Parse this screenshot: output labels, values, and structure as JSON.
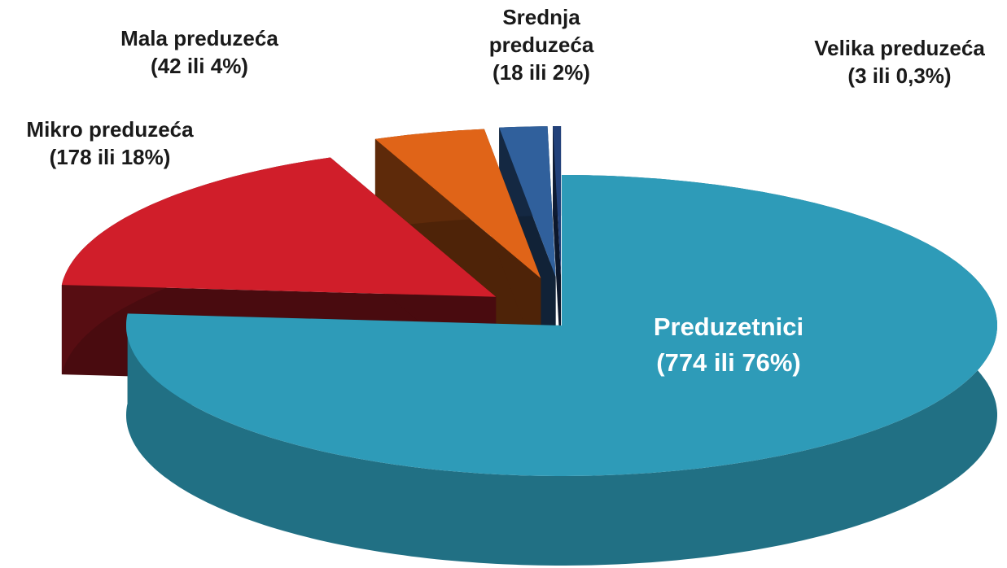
{
  "chart_data": {
    "type": "pie",
    "categories": [
      "Preduzetnici",
      "Mikro preduzeća",
      "Mala preduzeća",
      "Srednja preduzeća",
      "Velika preduzeća"
    ],
    "values": [
      774,
      178,
      42,
      18,
      3
    ],
    "value_labels": [
      "(774 ili 76%)",
      "(178 ili 18%)",
      "(42 ili 4%)",
      "(18 ili 2%)",
      "(3 ili 0,3%)"
    ],
    "colors": [
      "#2e9bb8",
      "#d01e2a",
      "#e06418",
      "#30609c",
      "#22417a"
    ]
  }
}
